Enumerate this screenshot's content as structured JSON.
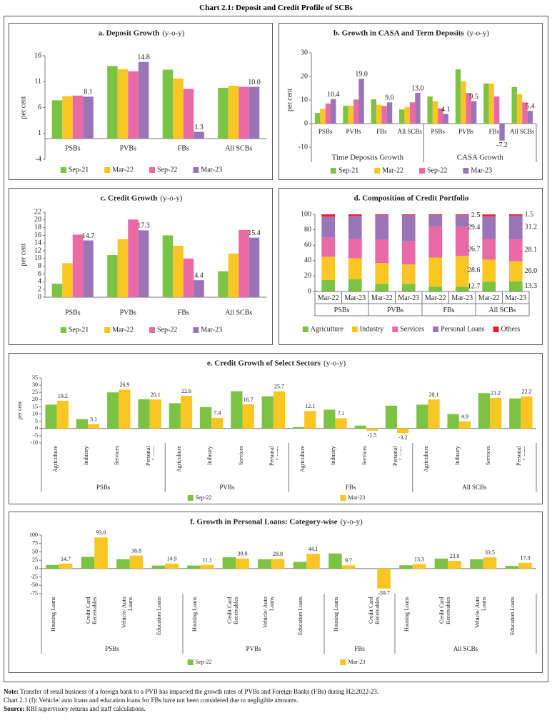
{
  "header": {
    "title": "Chart 2.1: Deposit and Credit Profile of SCBs"
  },
  "chart_data": [
    {
      "type": "bar",
      "title": "a. Deposit Growth",
      "subtitle": "(y-o-y)",
      "y_label": "per cent",
      "categories": [
        "PSBs",
        "PVBs",
        "FBs",
        "All SCBs"
      ],
      "series": [
        {
          "name": "Sep-21",
          "color": "#7cc243",
          "values": [
            7.4,
            14.0,
            13.3,
            9.8
          ]
        },
        {
          "name": "Mar-22",
          "color": "#f9c623",
          "values": [
            8.2,
            13.4,
            11.6,
            10.2
          ]
        },
        {
          "name": "Sep-22",
          "color": "#ea6aa5",
          "values": [
            8.3,
            13.0,
            9.6,
            10.0
          ]
        },
        {
          "name": "Mar-23",
          "color": "#9a74b6",
          "values": [
            8.1,
            14.8,
            1.3,
            10.0
          ],
          "value_labels": [
            "8.1",
            "14.8",
            "1.3",
            "10.0"
          ]
        }
      ],
      "ylim": [
        -4,
        16
      ],
      "yticks": [
        -4,
        1,
        6,
        11,
        16
      ]
    },
    {
      "type": "bar",
      "title": "b. Growth in CASA and Term Deposits",
      "subtitle": "(y-o-y)",
      "y_label": "per cent",
      "groups": [
        {
          "name": "Time Deposits Growth",
          "categories": [
            "PSBs",
            "PVBs",
            "FBs",
            "All SCBs"
          ]
        },
        {
          "name": "CASA Growth",
          "categories": [
            "PSBs",
            "PVBs",
            "FBs",
            "All SCBs"
          ]
        }
      ],
      "series": [
        {
          "name": "Sep-21",
          "color": "#7cc243",
          "values": [
            4.5,
            7.6,
            10.3,
            6.0,
            11.5,
            23.0,
            17.0,
            15.5
          ]
        },
        {
          "name": "Mar-22",
          "color": "#f9c623",
          "values": [
            6.2,
            7.6,
            8.0,
            7.0,
            9.5,
            18.0,
            17.0,
            12.5
          ]
        },
        {
          "name": "Sep-22",
          "color": "#ea6aa5",
          "values": [
            8.5,
            10.2,
            7.5,
            9.0,
            6.5,
            13.0,
            11.5,
            9.0
          ]
        },
        {
          "name": "Mar-23",
          "color": "#9a74b6",
          "values": [
            10.4,
            19.0,
            9.0,
            13.0,
            4.1,
            9.5,
            -7.2,
            5.4
          ],
          "value_labels": [
            "10.4",
            "19.0",
            "9.0",
            "13.0",
            "4.1",
            "9.5",
            "-7.2",
            "5.4"
          ]
        }
      ],
      "ylim": [
        -10,
        30
      ],
      "yticks": [
        -10,
        0,
        10,
        20,
        30
      ]
    },
    {
      "type": "bar",
      "title": "c. Credit Growth",
      "subtitle": "(y-o-y)",
      "y_label": "per cent",
      "categories": [
        "PSBs",
        "PVBs",
        "FBs",
        "All SCBs"
      ],
      "series": [
        {
          "name": "Sep-21",
          "color": "#7cc243",
          "values": [
            3.5,
            10.9,
            16.0,
            6.7
          ]
        },
        {
          "name": "Mar-22",
          "color": "#f9c623",
          "values": [
            8.8,
            15.0,
            13.3,
            11.3
          ]
        },
        {
          "name": "Sep-22",
          "color": "#ea6aa5",
          "values": [
            16.2,
            20.1,
            10.0,
            17.4
          ]
        },
        {
          "name": "Mar-23",
          "color": "#9a74b6",
          "values": [
            14.7,
            17.3,
            4.4,
            15.4
          ],
          "value_labels": [
            "14.7",
            "17.3",
            "4.4",
            "15.4"
          ]
        }
      ],
      "ylim": [
        0,
        22
      ],
      "yticks": [
        0,
        2,
        4,
        6,
        8,
        10,
        12,
        14,
        16,
        18,
        20,
        22
      ]
    },
    {
      "type": "bar",
      "stacked": true,
      "title": "d. Composition of Credit Portfolio",
      "groups": [
        {
          "name": "PSBs",
          "categories": [
            "Mar-22",
            "Mar-23"
          ]
        },
        {
          "name": "PVBs",
          "categories": [
            "Mar-22",
            "Mar-23"
          ]
        },
        {
          "name": "FBs",
          "categories": [
            "Mar-22",
            "Mar-23"
          ]
        },
        {
          "name": "All SCBs",
          "categories": [
            "Mar-22",
            "Mar-23"
          ]
        }
      ],
      "series": [
        {
          "name": "Agriculture",
          "color": "#7cc243",
          "values": [
            15,
            16,
            10,
            10,
            6,
            6,
            12.7,
            13.3
          ],
          "value_labels": [
            null,
            null,
            null,
            null,
            null,
            null,
            "12.7",
            "13.3"
          ]
        },
        {
          "name": "Industry",
          "color": "#f9c623",
          "values": [
            30,
            27,
            27,
            25,
            38,
            40,
            28.6,
            26.0
          ],
          "value_labels": [
            null,
            null,
            null,
            null,
            null,
            null,
            "28.6",
            "26.0"
          ]
        },
        {
          "name": "Services",
          "color": "#ea6aa5",
          "values": [
            25,
            25,
            30,
            30,
            40,
            38,
            26.7,
            28.1
          ],
          "value_labels": [
            null,
            null,
            null,
            null,
            null,
            null,
            "26.7",
            "28.1"
          ]
        },
        {
          "name": "Personal Loans",
          "color": "#9a74b6",
          "values": [
            27,
            30,
            32,
            34,
            15,
            15,
            29.4,
            31.2
          ],
          "value_labels": [
            null,
            null,
            null,
            null,
            null,
            null,
            "29.4",
            "31.2"
          ]
        },
        {
          "name": "Others",
          "color": "#e8202a",
          "values": [
            3,
            2,
            1,
            1,
            1,
            1,
            2.5,
            1.5
          ],
          "value_labels": [
            null,
            null,
            null,
            null,
            null,
            null,
            "2.5",
            "1.5"
          ]
        }
      ],
      "ylim": [
        0,
        100
      ],
      "yticks": [
        0,
        20,
        40,
        60,
        80,
        100
      ]
    },
    {
      "type": "bar",
      "title": "e. Credit Growth of Select Sectors",
      "subtitle": "(y-o-y)",
      "y_label": "per cent",
      "groups": [
        {
          "name": "PSBs",
          "categories": [
            "Agriculture",
            "Industry",
            "Services",
            "Personal Loans"
          ]
        },
        {
          "name": "PVBs",
          "categories": [
            "Agriculture",
            "Industry",
            "Services",
            "Personal Loans"
          ]
        },
        {
          "name": "FBs",
          "categories": [
            "Agriculture",
            "Industry",
            "Services",
            "Personal Loans"
          ]
        },
        {
          "name": "All SCBs",
          "categories": [
            "Agriculture",
            "Industry",
            "Services",
            "Personal Loans"
          ]
        }
      ],
      "series": [
        {
          "name": "Sep-22",
          "color": "#7cc243",
          "values": [
            16.5,
            6.5,
            25.0,
            20.3,
            17.5,
            14.8,
            25.8,
            22.3,
            1.0,
            13.0,
            2.0,
            15.8,
            16.5,
            10.0,
            24.5,
            20.8
          ]
        },
        {
          "name": "Mar-23",
          "color": "#f9c623",
          "values": [
            19.2,
            3.1,
            26.9,
            20.1,
            22.6,
            7.4,
            16.7,
            25.7,
            12.1,
            7.1,
            -1.5,
            -3.2,
            20.1,
            4.9,
            21.2,
            22.2
          ],
          "value_labels": [
            "19.2",
            "3.1",
            "26.9",
            "20.1",
            "22.6",
            "7.4",
            "16.7",
            "25.7",
            "12.1",
            "7.1",
            "-1.5",
            "-3.2",
            "20.1",
            "4.9",
            "21.2",
            "22.2"
          ]
        }
      ],
      "ylim": [
        -10,
        35
      ],
      "yticks": [
        -10,
        -5,
        0,
        5,
        10,
        15,
        20,
        25,
        30,
        35
      ]
    },
    {
      "type": "bar",
      "title": "f. Growth in Personal Loans: Category-wise",
      "subtitle": "(y-o-y)",
      "groups": [
        {
          "name": "PSBs",
          "categories": [
            "Housing Loans",
            "Credit Card Receivables",
            "Vehicle/ Auto Loans",
            "Education Loans"
          ]
        },
        {
          "name": "PVBs",
          "categories": [
            "Housing Loans",
            "Credit Card Receivables",
            "Vehicle/ Auto Loans",
            "Education Loans"
          ]
        },
        {
          "name": "FBs",
          "categories": [
            "Housing Loans",
            "Credit Card Receivables"
          ]
        },
        {
          "name": "All SCBs",
          "categories": [
            "Housing Loans",
            "Credit Card Receivables",
            "Vehicle/ Auto Loans",
            "Education Loans"
          ]
        }
      ],
      "series": [
        {
          "name": "Sep-22",
          "color": "#7cc243",
          "values": [
            11,
            35,
            28,
            9,
            9,
            34,
            28,
            20,
            45,
            null,
            10,
            30,
            28,
            8
          ]
        },
        {
          "name": "Mar-23",
          "color": "#f9c623",
          "values": [
            14.7,
            93.0,
            38.8,
            14.9,
            11.1,
            30.0,
            28.8,
            44.1,
            9.7,
            -59.7,
            13.3,
            23.0,
            33.5,
            17.3
          ],
          "value_labels": [
            "14.7",
            "93.0",
            "38.8",
            "14.9",
            "11.1",
            "30.0",
            "28.8",
            "44.1",
            "9.7",
            "-59.7",
            "13.3",
            "23.0",
            "33.5",
            "17.3"
          ]
        }
      ],
      "ylim": [
        -75,
        100
      ],
      "yticks": [
        -75,
        -50,
        -25,
        0,
        25,
        50,
        75,
        100
      ]
    }
  ],
  "notes": [
    {
      "label": "Note:",
      "text": "Transfer of retail business of a foreign bank to a PVB has impacted the growth rates of PVBs and Foreign Banks (FBs) during H2:2022-23."
    },
    {
      "text": "Chart 2.1 (f): Vehicle/ auto loans and education loans for FBs have not been considered due to negligible amounts."
    },
    {
      "label": "Source:",
      "text": "RBI supervisory returns and staff calculations."
    }
  ]
}
